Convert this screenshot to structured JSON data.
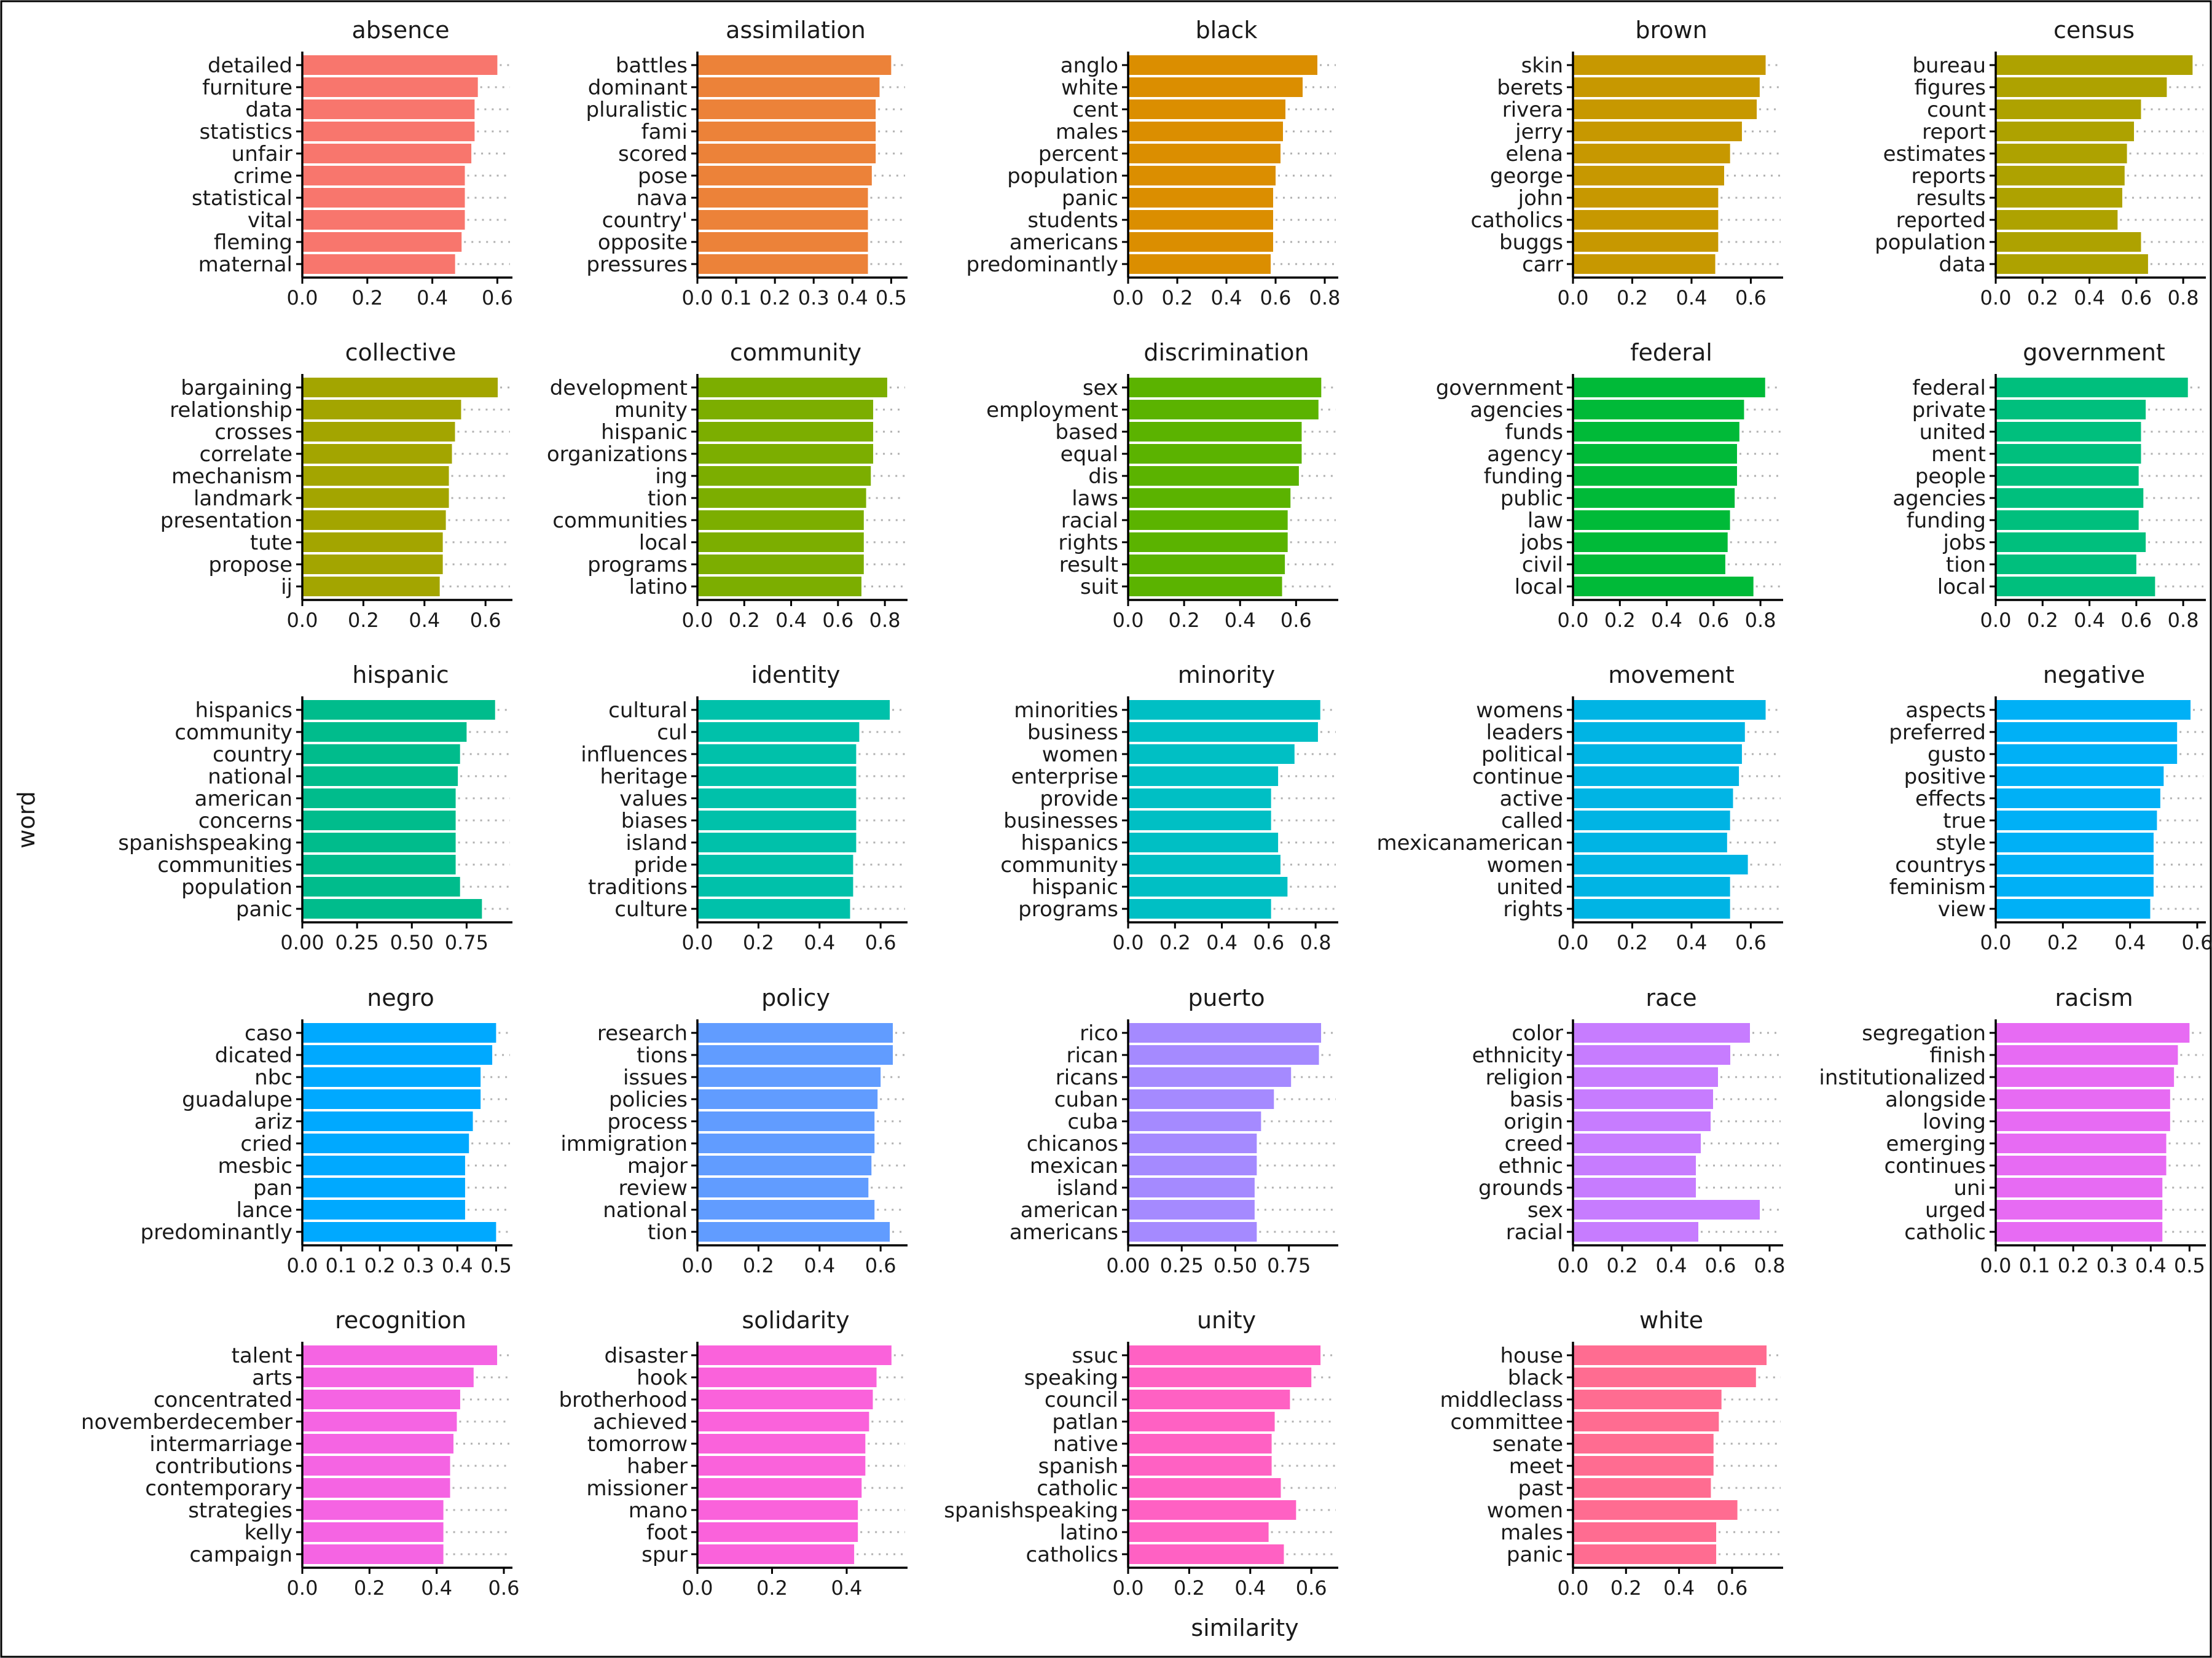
{
  "chart_data": {
    "type": "bar",
    "orientation": "horizontal",
    "xlabel": "similarity",
    "ylabel": "word",
    "grid": false,
    "legend": "none",
    "panels": [
      {
        "title": "absence",
        "color": "#F8766D",
        "xlim": [
          0,
          0.62
        ],
        "ticks": [
          "0.0",
          "0.2",
          "0.4",
          "0.6"
        ],
        "tick_values": [
          0,
          0.2,
          0.4,
          0.6
        ],
        "words": [
          "detailed",
          "furniture",
          "data",
          "statistics",
          "unfair",
          "crime",
          "statistical",
          "vital",
          "fleming",
          "maternal"
        ],
        "values": [
          0.6,
          0.54,
          0.53,
          0.53,
          0.52,
          0.5,
          0.5,
          0.5,
          0.49,
          0.47
        ]
      },
      {
        "title": "assimilation",
        "color": "#EC8239",
        "xlim": [
          0,
          0.52
        ],
        "ticks": [
          "0.0",
          "0.1",
          "0.2",
          "0.3",
          "0.4",
          "0.5"
        ],
        "tick_values": [
          0,
          0.1,
          0.2,
          0.3,
          0.4,
          0.5
        ],
        "words": [
          "battles",
          "dominant",
          "pluralistic",
          "fami",
          "scored",
          "pose",
          "nava",
          "country'",
          "opposite",
          "pressures"
        ],
        "values": [
          0.5,
          0.47,
          0.46,
          0.46,
          0.46,
          0.45,
          0.44,
          0.44,
          0.44,
          0.44
        ]
      },
      {
        "title": "black",
        "color": "#DB8E00",
        "xlim": [
          0,
          0.82
        ],
        "ticks": [
          "0.0",
          "0.2",
          "0.4",
          "0.6",
          "0.8"
        ],
        "tick_values": [
          0,
          0.2,
          0.4,
          0.6,
          0.8
        ],
        "words": [
          "anglo",
          "white",
          "cent",
          "males",
          "percent",
          "population",
          "panic",
          "students",
          "americans",
          "predominantly"
        ],
        "values": [
          0.77,
          0.71,
          0.64,
          0.63,
          0.62,
          0.6,
          0.59,
          0.59,
          0.59,
          0.58
        ]
      },
      {
        "title": "brown",
        "color": "#C79800",
        "xlim": [
          0,
          0.68
        ],
        "ticks": [
          "0.0",
          "0.2",
          "0.4",
          "0.6"
        ],
        "tick_values": [
          0,
          0.2,
          0.4,
          0.6
        ],
        "words": [
          "skin",
          "berets",
          "rivera",
          "jerry",
          "elena",
          "george",
          "john",
          "catholics",
          "buggs",
          "carr"
        ],
        "values": [
          0.65,
          0.63,
          0.62,
          0.57,
          0.53,
          0.51,
          0.49,
          0.49,
          0.49,
          0.48
        ]
      },
      {
        "title": "census",
        "color": "#AEA200",
        "xlim": [
          0,
          0.86
        ],
        "ticks": [
          "0.0",
          "0.2",
          "0.4",
          "0.6",
          "0.8"
        ],
        "tick_values": [
          0,
          0.2,
          0.4,
          0.6,
          0.8
        ],
        "words": [
          "bureau",
          "figures",
          "count",
          "report",
          "estimates",
          "reports",
          "results",
          "reported",
          "population",
          "data"
        ],
        "values": [
          0.84,
          0.73,
          0.62,
          0.59,
          0.56,
          0.55,
          0.54,
          0.52,
          0.62,
          0.65
        ]
      },
      {
        "title": "collective",
        "color": "#A3A500",
        "xlim": [
          0,
          0.66
        ],
        "ticks": [
          "0.0",
          "0.2",
          "0.4",
          "0.6"
        ],
        "tick_values": [
          0,
          0.2,
          0.4,
          0.6
        ],
        "words": [
          "bargaining",
          "relationship",
          "crosses",
          "correlate",
          "mechanism",
          "landmark",
          "presentation",
          "tute",
          "propose",
          "ij"
        ],
        "values": [
          0.64,
          0.52,
          0.5,
          0.49,
          0.48,
          0.48,
          0.47,
          0.46,
          0.46,
          0.45
        ]
      },
      {
        "title": "community",
        "color": "#7CAE00",
        "xlim": [
          0,
          0.86
        ],
        "ticks": [
          "0.0",
          "0.2",
          "0.4",
          "0.6",
          "0.8"
        ],
        "tick_values": [
          0,
          0.2,
          0.4,
          0.6,
          0.8
        ],
        "words": [
          "development",
          "munity",
          "hispanic",
          "organizations",
          "ing",
          "tion",
          "communities",
          "local",
          "programs",
          "latino"
        ],
        "values": [
          0.81,
          0.75,
          0.75,
          0.75,
          0.74,
          0.72,
          0.71,
          0.71,
          0.71,
          0.7
        ]
      },
      {
        "title": "discrimination",
        "color": "#5BB300",
        "xlim": [
          0,
          0.72
        ],
        "ticks": [
          "0.0",
          "0.2",
          "0.4",
          "0.6"
        ],
        "tick_values": [
          0,
          0.2,
          0.4,
          0.6
        ],
        "words": [
          "sex",
          "employment",
          "based",
          "equal",
          "dis",
          "laws",
          "racial",
          "rights",
          "result",
          "suit"
        ],
        "values": [
          0.69,
          0.68,
          0.62,
          0.62,
          0.61,
          0.58,
          0.57,
          0.57,
          0.56,
          0.55
        ]
      },
      {
        "title": "federal",
        "color": "#00BA38",
        "xlim": [
          0,
          0.86
        ],
        "ticks": [
          "0.0",
          "0.2",
          "0.4",
          "0.6",
          "0.8"
        ],
        "tick_values": [
          0,
          0.2,
          0.4,
          0.6,
          0.8
        ],
        "words": [
          "government",
          "agencies",
          "funds",
          "agency",
          "funding",
          "public",
          "law",
          "jobs",
          "civil",
          "local"
        ],
        "values": [
          0.82,
          0.73,
          0.71,
          0.7,
          0.7,
          0.69,
          0.67,
          0.66,
          0.65,
          0.77
        ]
      },
      {
        "title": "government",
        "color": "#00BF7D",
        "xlim": [
          0,
          0.86
        ],
        "ticks": [
          "0.0",
          "0.2",
          "0.4",
          "0.6",
          "0.8"
        ],
        "tick_values": [
          0,
          0.2,
          0.4,
          0.6,
          0.8
        ],
        "words": [
          "federal",
          "private",
          "united",
          "ment",
          "people",
          "agencies",
          "funding",
          "jobs",
          "tion",
          "local"
        ],
        "values": [
          0.82,
          0.64,
          0.62,
          0.62,
          0.61,
          0.63,
          0.61,
          0.64,
          0.6,
          0.68
        ]
      },
      {
        "title": "hispanic",
        "color": "#00BC8C",
        "xlim": [
          0,
          0.92
        ],
        "ticks": [
          "0.00",
          "0.25",
          "0.50",
          "0.75"
        ],
        "tick_values": [
          0,
          0.25,
          0.5,
          0.75
        ],
        "words": [
          "hispanics",
          "community",
          "country",
          "national",
          "american",
          "concerns",
          "spanishspeaking",
          "communities",
          "population",
          "panic"
        ],
        "values": [
          0.88,
          0.75,
          0.72,
          0.71,
          0.7,
          0.7,
          0.7,
          0.7,
          0.72,
          0.82
        ]
      },
      {
        "title": "identity",
        "color": "#00C1AA",
        "xlim": [
          0,
          0.66
        ],
        "ticks": [
          "0.0",
          "0.2",
          "0.4",
          "0.6"
        ],
        "tick_values": [
          0,
          0.2,
          0.4,
          0.6
        ],
        "words": [
          "cultural",
          "cul",
          "influences",
          "heritage",
          "values",
          "biases",
          "island",
          "pride",
          "traditions",
          "culture"
        ],
        "values": [
          0.63,
          0.53,
          0.52,
          0.52,
          0.52,
          0.52,
          0.52,
          0.51,
          0.51,
          0.5
        ]
      },
      {
        "title": "minority",
        "color": "#00BFC4",
        "xlim": [
          0,
          0.86
        ],
        "ticks": [
          "0.0",
          "0.2",
          "0.4",
          "0.6",
          "0.8"
        ],
        "tick_values": [
          0,
          0.2,
          0.4,
          0.6,
          0.8
        ],
        "words": [
          "minorities",
          "business",
          "women",
          "enterprise",
          "provide",
          "businesses",
          "hispanics",
          "community",
          "hispanic",
          "programs"
        ],
        "values": [
          0.82,
          0.81,
          0.71,
          0.64,
          0.61,
          0.61,
          0.64,
          0.65,
          0.68,
          0.61
        ]
      },
      {
        "title": "movement",
        "color": "#00B4E4",
        "xlim": [
          0,
          0.68
        ],
        "ticks": [
          "0.0",
          "0.2",
          "0.4",
          "0.6"
        ],
        "tick_values": [
          0,
          0.2,
          0.4,
          0.6
        ],
        "words": [
          "womens",
          "leaders",
          "political",
          "continue",
          "active",
          "called",
          "mexicanamerican",
          "women",
          "united",
          "rights"
        ],
        "values": [
          0.65,
          0.58,
          0.57,
          0.56,
          0.54,
          0.53,
          0.52,
          0.59,
          0.53,
          0.53
        ]
      },
      {
        "title": "negative",
        "color": "#00B0F6",
        "xlim": [
          0,
          0.6
        ],
        "ticks": [
          "0.0",
          "0.2",
          "0.4",
          "0.6"
        ],
        "tick_values": [
          0,
          0.2,
          0.4,
          0.6
        ],
        "words": [
          "aspects",
          "preferred",
          "gusto",
          "positive",
          "effects",
          "true",
          "style",
          "countrys",
          "feminism",
          "view"
        ],
        "values": [
          0.58,
          0.54,
          0.54,
          0.5,
          0.49,
          0.48,
          0.47,
          0.47,
          0.47,
          0.46
        ]
      },
      {
        "title": "negro",
        "color": "#00A9FF",
        "xlim": [
          0,
          0.52
        ],
        "ticks": [
          "0.0",
          "0.1",
          "0.2",
          "0.3",
          "0.4",
          "0.5"
        ],
        "tick_values": [
          0,
          0.1,
          0.2,
          0.3,
          0.4,
          0.5
        ],
        "words": [
          "caso",
          "dicated",
          "nbc",
          "guadalupe",
          "ariz",
          "cried",
          "mesbic",
          "pan",
          "lance",
          "predominantly"
        ],
        "values": [
          0.5,
          0.49,
          0.46,
          0.46,
          0.44,
          0.43,
          0.42,
          0.42,
          0.42,
          0.5
        ]
      },
      {
        "title": "policy",
        "color": "#619CFF",
        "xlim": [
          0,
          0.66
        ],
        "ticks": [
          "0.0",
          "0.2",
          "0.4",
          "0.6"
        ],
        "tick_values": [
          0,
          0.2,
          0.4,
          0.6
        ],
        "words": [
          "research",
          "tions",
          "issues",
          "policies",
          "process",
          "immigration",
          "major",
          "review",
          "national",
          "tion"
        ],
        "values": [
          0.64,
          0.64,
          0.6,
          0.59,
          0.58,
          0.58,
          0.57,
          0.56,
          0.58,
          0.63
        ]
      },
      {
        "title": "puerto",
        "color": "#A58AFF",
        "xlim": [
          0,
          0.94
        ],
        "ticks": [
          "0.00",
          "0.25",
          "0.50",
          "0.75"
        ],
        "tick_values": [
          0,
          0.25,
          0.5,
          0.75
        ],
        "words": [
          "rico",
          "rican",
          "ricans",
          "cuban",
          "cuba",
          "chicanos",
          "mexican",
          "island",
          "american",
          "americans"
        ],
        "values": [
          0.9,
          0.89,
          0.76,
          0.68,
          0.62,
          0.6,
          0.6,
          0.59,
          0.59,
          0.6
        ]
      },
      {
        "title": "race",
        "color": "#C77CFF",
        "xlim": [
          0,
          0.82
        ],
        "ticks": [
          "0.0",
          "0.2",
          "0.4",
          "0.6",
          "0.8"
        ],
        "tick_values": [
          0,
          0.2,
          0.4,
          0.6,
          0.8
        ],
        "words": [
          "color",
          "ethnicity",
          "religion",
          "basis",
          "origin",
          "creed",
          "ethnic",
          "grounds",
          "sex",
          "racial"
        ],
        "values": [
          0.72,
          0.64,
          0.59,
          0.57,
          0.56,
          0.52,
          0.5,
          0.5,
          0.76,
          0.51
        ]
      },
      {
        "title": "racism",
        "color": "#E76BF3",
        "xlim": [
          0,
          0.52
        ],
        "ticks": [
          "0.0",
          "0.1",
          "0.2",
          "0.3",
          "0.4",
          "0.5"
        ],
        "tick_values": [
          0,
          0.1,
          0.2,
          0.3,
          0.4,
          0.5
        ],
        "words": [
          "segregation",
          "finish",
          "institutionalized",
          "alongside",
          "loving",
          "emerging",
          "continues",
          "uni",
          "urged",
          "catholic"
        ],
        "values": [
          0.5,
          0.47,
          0.46,
          0.45,
          0.45,
          0.44,
          0.44,
          0.43,
          0.43,
          0.43
        ]
      },
      {
        "title": "recognition",
        "color": "#F564E3",
        "xlim": [
          0,
          0.6
        ],
        "ticks": [
          "0.0",
          "0.2",
          "0.4",
          "0.6"
        ],
        "tick_values": [
          0,
          0.2,
          0.4,
          0.6
        ],
        "words": [
          "talent",
          "arts",
          "concentrated",
          "novemberdecember",
          "intermarriage",
          "contributions",
          "contemporary",
          "strategies",
          "kelly",
          "campaign"
        ],
        "values": [
          0.58,
          0.51,
          0.47,
          0.46,
          0.45,
          0.44,
          0.44,
          0.42,
          0.42,
          0.42
        ]
      },
      {
        "title": "solidarity",
        "color": "#FA62DB",
        "xlim": [
          0,
          0.54
        ],
        "ticks": [
          "0.0",
          "0.2",
          "0.4"
        ],
        "tick_values": [
          0,
          0.2,
          0.4
        ],
        "words": [
          "disaster",
          "hook",
          "brotherhood",
          "achieved",
          "tomorrow",
          "haber",
          "missioner",
          "mano",
          "foot",
          "spur"
        ],
        "values": [
          0.52,
          0.48,
          0.47,
          0.46,
          0.45,
          0.45,
          0.44,
          0.43,
          0.43,
          0.42
        ]
      },
      {
        "title": "unity",
        "color": "#FF61C3",
        "xlim": [
          0,
          0.66
        ],
        "ticks": [
          "0.0",
          "0.2",
          "0.4",
          "0.6"
        ],
        "tick_values": [
          0,
          0.2,
          0.4,
          0.6
        ],
        "words": [
          "ssuc",
          "speaking",
          "council",
          "patlan",
          "native",
          "spanish",
          "catholic",
          "spanishspeaking",
          "latino",
          "catholics"
        ],
        "values": [
          0.63,
          0.6,
          0.53,
          0.48,
          0.47,
          0.47,
          0.5,
          0.55,
          0.46,
          0.51
        ]
      },
      {
        "title": "white",
        "color": "#FF6C91",
        "xlim": [
          0,
          0.76
        ],
        "ticks": [
          "0.0",
          "0.2",
          "0.4",
          "0.6"
        ],
        "tick_values": [
          0,
          0.2,
          0.4,
          0.6
        ],
        "words": [
          "house",
          "black",
          "middleclass",
          "committee",
          "senate",
          "meet",
          "past",
          "women",
          "males",
          "panic"
        ],
        "values": [
          0.73,
          0.69,
          0.56,
          0.55,
          0.53,
          0.53,
          0.52,
          0.62,
          0.54,
          0.54
        ]
      }
    ]
  }
}
